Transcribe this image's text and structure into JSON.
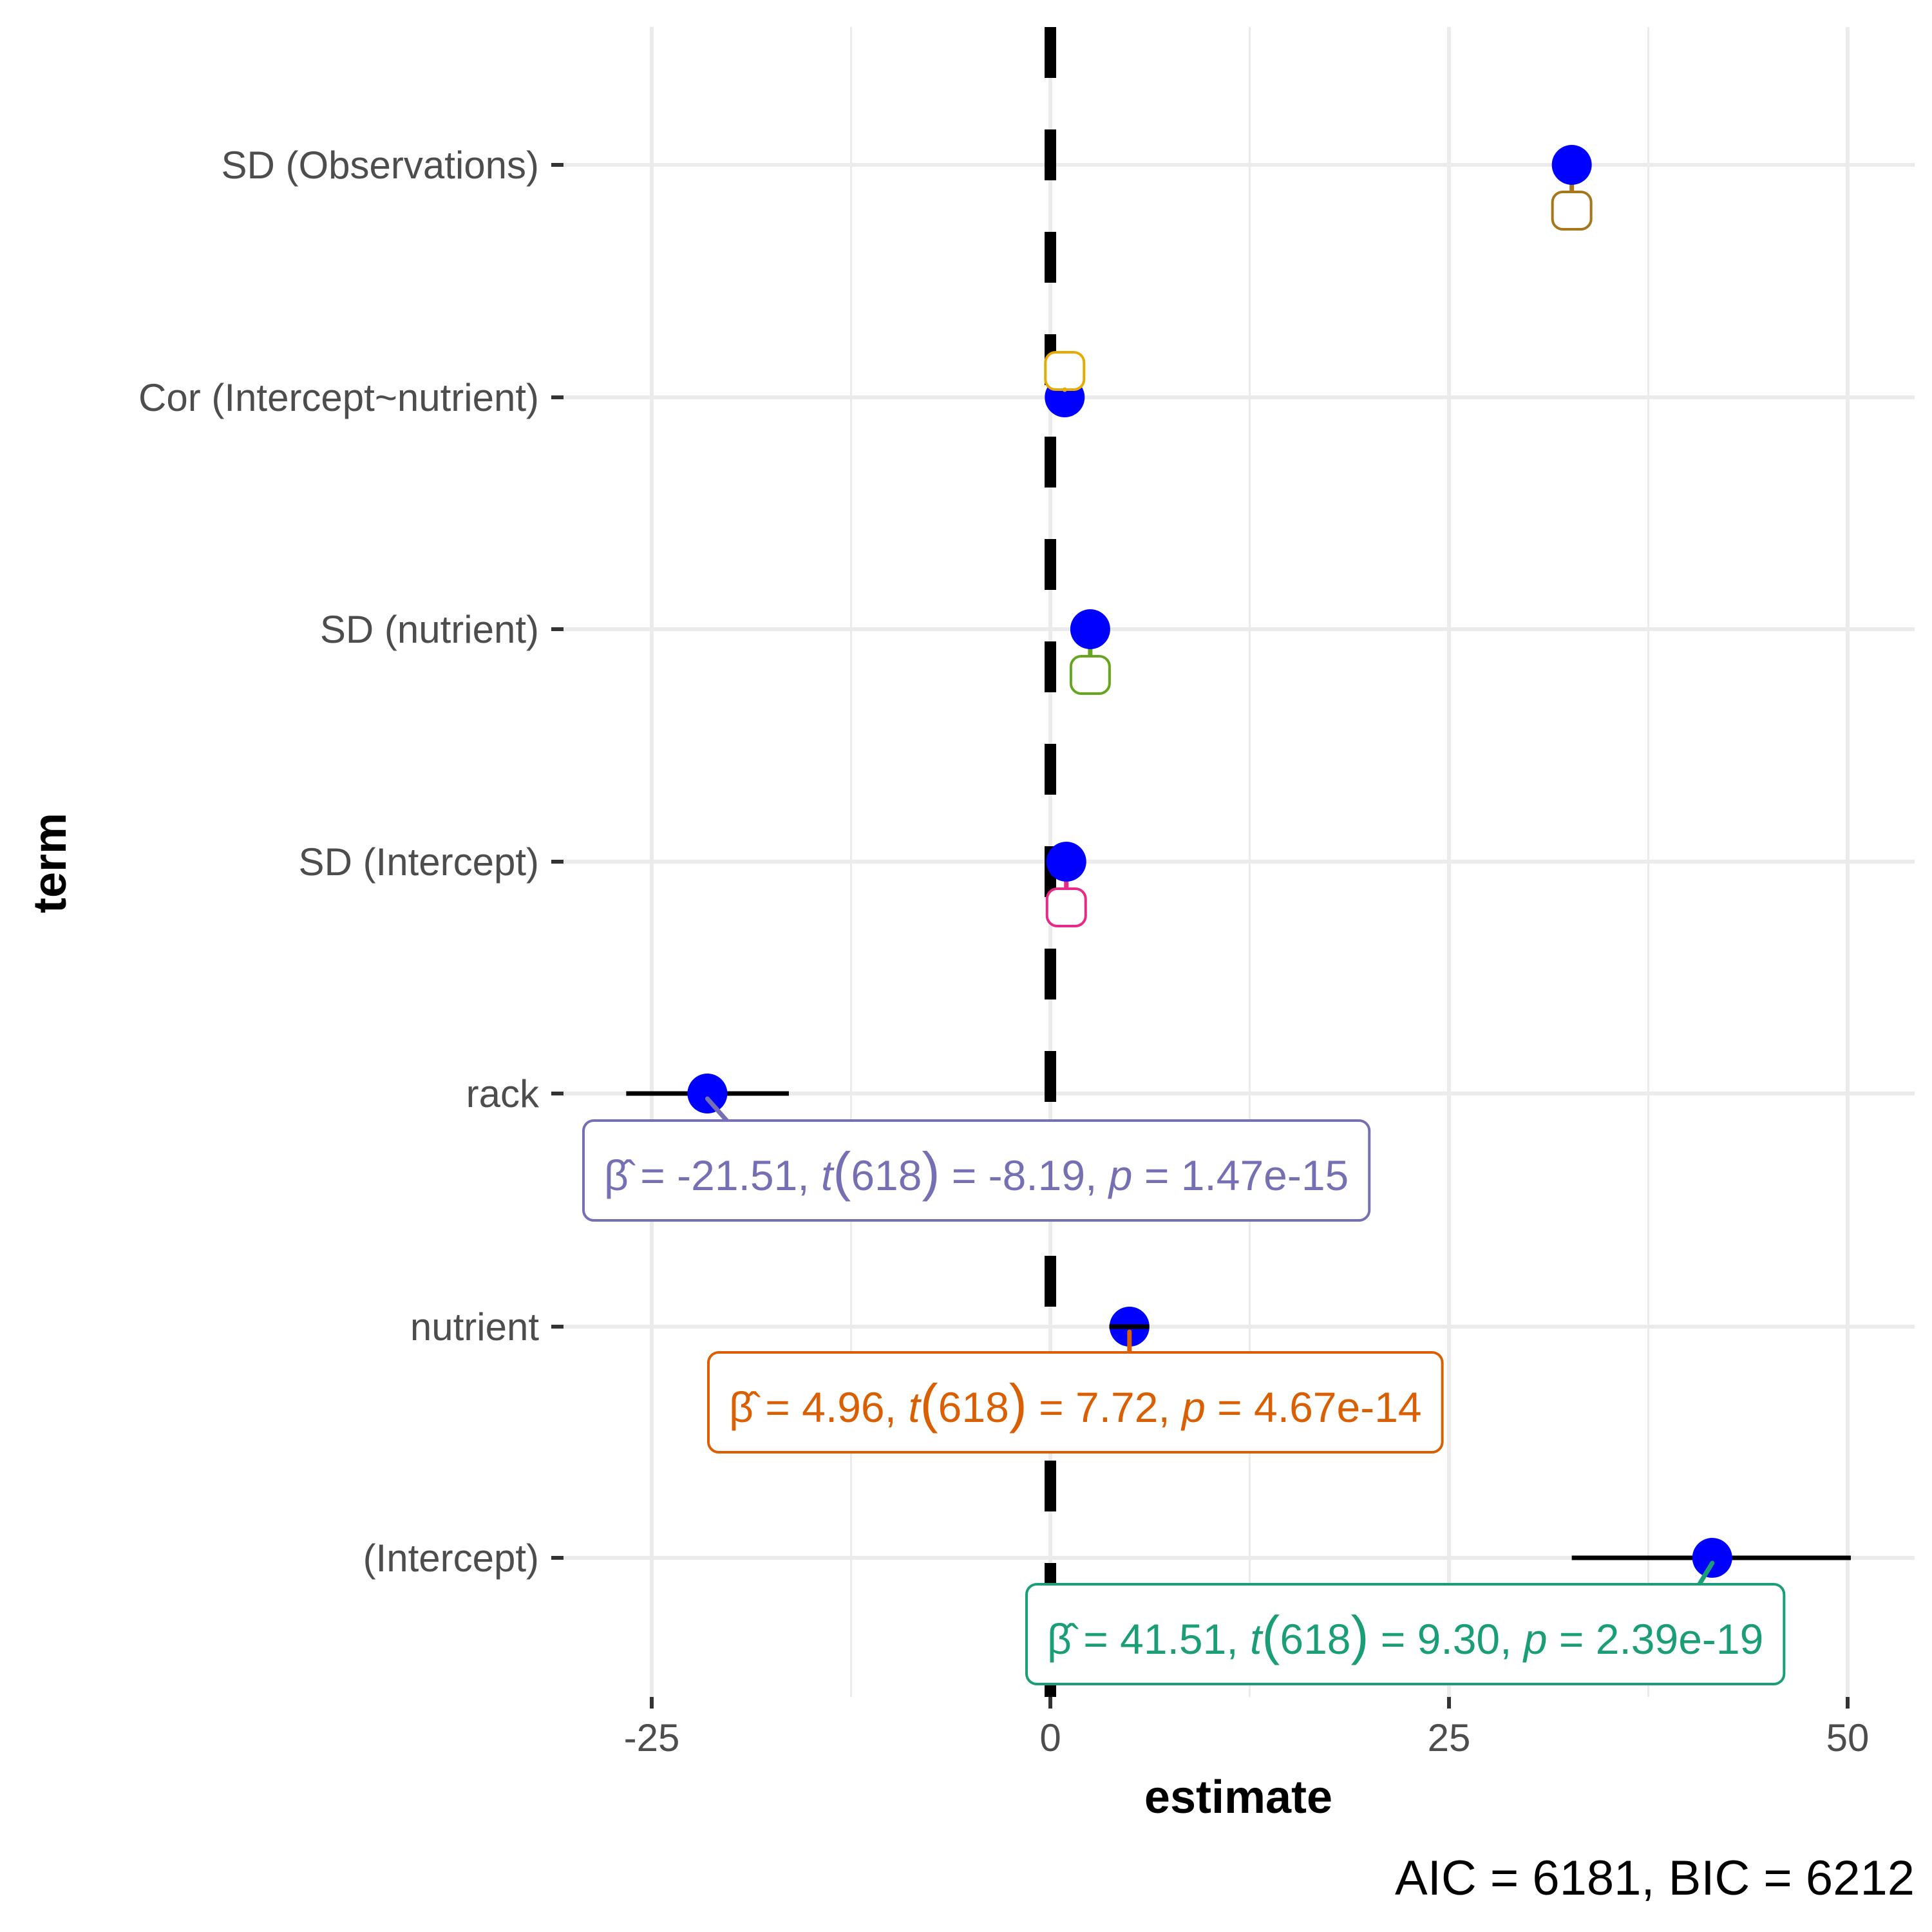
{
  "chart_data": {
    "type": "scatter",
    "subtype": "coefficient-plot",
    "xlabel": "estimate",
    "ylabel": "term",
    "caption": "AIC = 6181, BIC = 6212",
    "xlim": [
      -29,
      55
    ],
    "xticks": [
      -25,
      0,
      25,
      50
    ],
    "xtick_labels": [
      "-25",
      "0",
      "25",
      "50"
    ],
    "grid": true,
    "reference_line": {
      "x": 0,
      "style": "dashed",
      "color": "#000000"
    },
    "point_color": "#0000FF",
    "terms": [
      {
        "term": "SD (Observations)",
        "estimate": 32.7,
        "ci": null,
        "label_color": "#A6761D",
        "label": ""
      },
      {
        "term": "Cor (Intercept~nutrient)",
        "estimate": 0.9,
        "ci": null,
        "label_color": "#E6AB02",
        "label": ""
      },
      {
        "term": "SD (nutrient)",
        "estimate": 2.5,
        "ci": null,
        "label_color": "#66A61E",
        "label": ""
      },
      {
        "term": "SD (Intercept)",
        "estimate": 1.0,
        "ci": null,
        "label_color": "#E7298A",
        "label": ""
      },
      {
        "term": "rack",
        "estimate": -21.51,
        "ci": [
          -26.6,
          -16.4
        ],
        "label_color": "#7570B3",
        "label": {
          "beta": "-21.51",
          "df": "618",
          "t": "-8.19",
          "p": "1.47e-15"
        }
      },
      {
        "term": "nutrient",
        "estimate": 4.96,
        "ci": [
          3.7,
          6.2
        ],
        "label_color": "#D95F02",
        "label": {
          "beta": "4.96",
          "df": "618",
          "t": "7.72",
          "p": "4.67e-14"
        }
      },
      {
        "term": "(Intercept)",
        "estimate": 41.51,
        "ci": [
          32.7,
          50.2
        ],
        "label_color": "#1B9E77",
        "label": {
          "beta": "41.51",
          "df": "618",
          "t": "9.30",
          "p": "2.39e-19"
        }
      }
    ]
  }
}
